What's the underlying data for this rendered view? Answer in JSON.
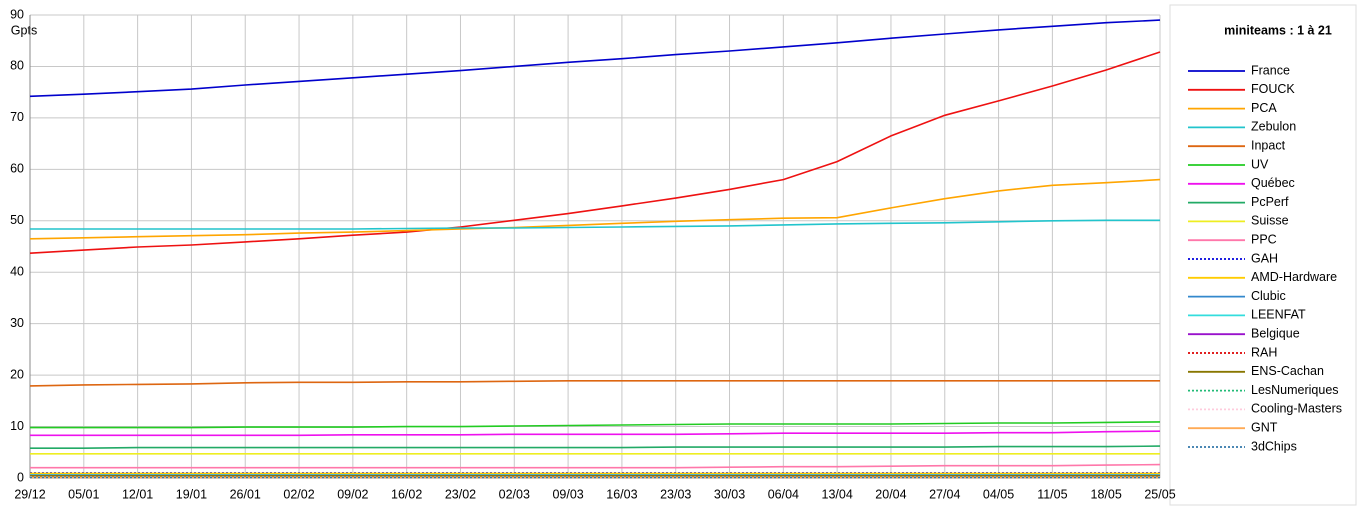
{
  "chart_data": {
    "type": "line",
    "title": "miniteams : 1 à 21",
    "y_label": "Gpts",
    "categories": [
      "29/12",
      "05/01",
      "12/01",
      "19/01",
      "26/01",
      "02/02",
      "09/02",
      "16/02",
      "23/02",
      "02/03",
      "09/03",
      "16/03",
      "23/03",
      "30/03",
      "06/04",
      "13/04",
      "20/04",
      "27/04",
      "04/05",
      "11/05",
      "18/05",
      "25/05"
    ],
    "ylim": [
      0,
      90
    ],
    "yticks": [
      0,
      10,
      20,
      30,
      40,
      50,
      60,
      70,
      80,
      90
    ],
    "grid": true,
    "legend": "right",
    "series": [
      {
        "name": "France",
        "color": "#0000cc",
        "style": "solid",
        "values": [
          74.2,
          74.6,
          75.1,
          75.6,
          76.4,
          77.1,
          77.8,
          78.5,
          79.2,
          80.0,
          80.8,
          81.5,
          82.3,
          83.0,
          83.8,
          84.6,
          85.5,
          86.3,
          87.1,
          87.8,
          88.5,
          89.0
        ]
      },
      {
        "name": "FOUCK",
        "color": "#ee1111",
        "style": "solid",
        "values": [
          43.7,
          44.3,
          44.9,
          45.3,
          45.9,
          46.5,
          47.2,
          47.8,
          48.8,
          50.1,
          51.4,
          52.9,
          54.4,
          56.1,
          58.0,
          61.5,
          66.5,
          70.5,
          73.3,
          76.2,
          79.3,
          82.8
        ]
      },
      {
        "name": "PCA",
        "color": "#ffa500",
        "style": "solid",
        "values": [
          46.5,
          46.7,
          46.9,
          47.1,
          47.3,
          47.6,
          47.8,
          48.1,
          48.4,
          48.7,
          49.1,
          49.5,
          49.9,
          50.2,
          50.5,
          50.6,
          52.5,
          54.3,
          55.8,
          56.9,
          57.4,
          58.0
        ]
      },
      {
        "name": "Zebulon",
        "color": "#22c4cc",
        "style": "solid",
        "values": [
          48.4,
          48.4,
          48.4,
          48.4,
          48.4,
          48.4,
          48.4,
          48.5,
          48.6,
          48.6,
          48.7,
          48.8,
          48.9,
          49.0,
          49.2,
          49.4,
          49.5,
          49.6,
          49.8,
          50.0,
          50.1,
          50.1
        ]
      },
      {
        "name": "Inpact",
        "color": "#dd6611",
        "style": "solid",
        "values": [
          17.9,
          18.1,
          18.2,
          18.3,
          18.5,
          18.6,
          18.6,
          18.7,
          18.7,
          18.8,
          18.9,
          18.9,
          18.9,
          18.9,
          18.9,
          18.9,
          18.9,
          18.9,
          18.9,
          18.9,
          18.9,
          18.9
        ]
      },
      {
        "name": "UV",
        "color": "#22cc22",
        "style": "solid",
        "values": [
          9.8,
          9.8,
          9.8,
          9.8,
          9.9,
          9.9,
          9.9,
          10.0,
          10.0,
          10.1,
          10.2,
          10.3,
          10.4,
          10.5,
          10.5,
          10.5,
          10.5,
          10.6,
          10.7,
          10.7,
          10.8,
          10.9
        ]
      },
      {
        "name": "Québec",
        "color": "#ee11ee",
        "style": "solid",
        "values": [
          8.3,
          8.3,
          8.3,
          8.3,
          8.3,
          8.3,
          8.4,
          8.4,
          8.4,
          8.5,
          8.5,
          8.5,
          8.5,
          8.6,
          8.7,
          8.7,
          8.7,
          8.7,
          8.8,
          8.8,
          9.0,
          9.1
        ]
      },
      {
        "name": "PcPerf",
        "color": "#22aa66",
        "style": "solid",
        "values": [
          5.8,
          5.8,
          5.9,
          5.9,
          5.9,
          5.9,
          5.9,
          5.9,
          5.9,
          5.9,
          5.9,
          5.9,
          6.0,
          6.0,
          6.0,
          6.0,
          6.0,
          6.0,
          6.1,
          6.1,
          6.1,
          6.2
        ]
      },
      {
        "name": "Suisse",
        "color": "#eeee22",
        "style": "solid",
        "values": [
          4.7,
          4.7,
          4.7,
          4.7,
          4.7,
          4.7,
          4.7,
          4.7,
          4.7,
          4.7,
          4.7,
          4.7,
          4.7,
          4.7,
          4.7,
          4.7,
          4.7,
          4.7,
          4.7,
          4.7,
          4.7,
          4.7
        ]
      },
      {
        "name": "PPC",
        "color": "#ff77aa",
        "style": "solid",
        "values": [
          2.0,
          2.0,
          2.0,
          2.0,
          2.0,
          2.0,
          2.0,
          2.0,
          2.0,
          2.0,
          2.0,
          2.0,
          2.0,
          2.1,
          2.2,
          2.2,
          2.3,
          2.4,
          2.4,
          2.4,
          2.5,
          2.6
        ]
      },
      {
        "name": "GAH",
        "color": "#0000dd",
        "style": "dotted",
        "values": [
          1.0,
          1.0,
          1.0,
          1.0,
          1.0,
          1.0,
          1.0,
          1.0,
          1.0,
          1.0,
          1.0,
          1.0,
          1.0,
          1.0,
          1.0,
          1.0,
          1.0,
          1.0,
          1.0,
          1.0,
          1.0,
          1.0
        ]
      },
      {
        "name": "AMD-Hardware",
        "color": "#ffcc00",
        "style": "solid",
        "values": [
          0.9,
          0.9,
          0.9,
          0.9,
          0.9,
          0.9,
          0.9,
          0.9,
          0.9,
          0.9,
          0.9,
          0.9,
          0.9,
          0.9,
          0.9,
          0.9,
          0.9,
          0.9,
          0.9,
          0.9,
          0.9,
          0.9
        ]
      },
      {
        "name": "Clubic",
        "color": "#3388cc",
        "style": "solid",
        "values": [
          0.6,
          0.6,
          0.6,
          0.6,
          0.6,
          0.6,
          0.6,
          0.6,
          0.6,
          0.6,
          0.6,
          0.6,
          0.6,
          0.6,
          0.6,
          0.6,
          0.6,
          0.6,
          0.6,
          0.6,
          0.6,
          0.6
        ]
      },
      {
        "name": "LEENFAT",
        "color": "#33dddd",
        "style": "solid",
        "values": [
          0.5,
          0.5,
          0.5,
          0.5,
          0.5,
          0.5,
          0.5,
          0.5,
          0.5,
          0.5,
          0.5,
          0.5,
          0.5,
          0.5,
          0.5,
          0.5,
          0.5,
          0.5,
          0.5,
          0.5,
          0.5,
          0.5
        ]
      },
      {
        "name": "Belgique",
        "color": "#9911cc",
        "style": "solid",
        "values": [
          0.4,
          0.4,
          0.4,
          0.4,
          0.4,
          0.4,
          0.4,
          0.4,
          0.4,
          0.4,
          0.4,
          0.4,
          0.4,
          0.4,
          0.4,
          0.4,
          0.4,
          0.4,
          0.4,
          0.4,
          0.4,
          0.4
        ]
      },
      {
        "name": "RAH",
        "color": "#dd0000",
        "style": "dotted",
        "values": [
          0.3,
          0.3,
          0.3,
          0.3,
          0.3,
          0.3,
          0.3,
          0.3,
          0.3,
          0.3,
          0.3,
          0.3,
          0.3,
          0.3,
          0.3,
          0.3,
          0.3,
          0.3,
          0.3,
          0.3,
          0.3,
          0.3
        ]
      },
      {
        "name": "ENS-Cachan",
        "color": "#887700",
        "style": "solid",
        "values": [
          0.4,
          0.4,
          0.4,
          0.4,
          0.4,
          0.4,
          0.4,
          0.4,
          0.4,
          0.4,
          0.4,
          0.4,
          0.4,
          0.4,
          0.4,
          0.4,
          0.4,
          0.4,
          0.4,
          0.4,
          0.4,
          0.4
        ]
      },
      {
        "name": "LesNumeriques",
        "color": "#22bb77",
        "style": "dotted",
        "values": [
          0.2,
          0.2,
          0.2,
          0.2,
          0.2,
          0.2,
          0.2,
          0.2,
          0.2,
          0.2,
          0.2,
          0.2,
          0.2,
          0.2,
          0.2,
          0.2,
          0.2,
          0.2,
          0.2,
          0.2,
          0.2,
          0.2
        ]
      },
      {
        "name": "Cooling-Masters",
        "color": "#ffccdd",
        "style": "dotted",
        "values": [
          0.2,
          0.2,
          0.2,
          0.2,
          0.2,
          0.2,
          0.2,
          0.2,
          0.2,
          0.2,
          0.2,
          0.2,
          0.2,
          0.2,
          0.2,
          0.2,
          0.2,
          0.2,
          0.2,
          0.2,
          0.2,
          0.2
        ]
      },
      {
        "name": "GNT",
        "color": "#ffaa55",
        "style": "solid",
        "values": [
          0.1,
          0.1,
          0.1,
          0.1,
          0.1,
          0.1,
          0.1,
          0.1,
          0.1,
          0.1,
          0.1,
          0.1,
          0.1,
          0.1,
          0.1,
          0.1,
          0.1,
          0.1,
          0.1,
          0.1,
          0.1,
          0.1
        ]
      },
      {
        "name": "3dChips",
        "color": "#3377aa",
        "style": "dotted",
        "values": [
          0.1,
          0.1,
          0.1,
          0.1,
          0.1,
          0.1,
          0.1,
          0.1,
          0.1,
          0.1,
          0.1,
          0.1,
          0.1,
          0.1,
          0.1,
          0.1,
          0.1,
          0.1,
          0.1,
          0.1,
          0.1,
          0.1
        ]
      }
    ]
  }
}
